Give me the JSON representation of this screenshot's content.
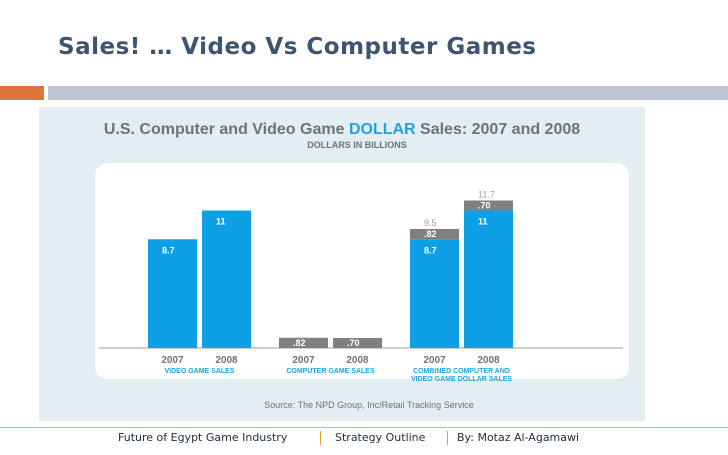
{
  "slide": {
    "title": "Sales! … Video Vs Computer Games",
    "footer": {
      "left": "Future of Egypt Game Industry",
      "middle": "Strategy Outline",
      "right": "By: Motaz Al-Agamawi"
    }
  },
  "colors": {
    "accent_orange": "#e0773a",
    "accent_gray": "#bcc6d1",
    "title_text": "#3b5573",
    "chart_title_gray": "#6d7378",
    "chart_title_blue": "#1fa3e0",
    "bar_blue": "#0ea0e6",
    "bar_gray": "#7f8082",
    "chart_bg": "#e3edf2"
  },
  "chart_data": {
    "type": "bar",
    "title_prefix": "U.S. Computer and Video Game ",
    "title_highlight": "DOLLAR",
    "title_suffix": " Sales: 2007 and 2008",
    "subtitle": "DOLLARS IN BILLIONS",
    "source": "Source: The NPD Group, Inc/Retail Tracking Service",
    "ylim": [
      0,
      12
    ],
    "grid": false,
    "legend": "none",
    "groups": [
      {
        "label_line1": "VIDEO GAME SALES",
        "label_line2": "",
        "bars": [
          {
            "category": "2007",
            "segments": [
              {
                "label": "8.7",
                "value": 8.7,
                "color": "blue"
              }
            ],
            "total_label": ""
          },
          {
            "category": "2008",
            "segments": [
              {
                "label": "11",
                "value": 11,
                "color": "blue"
              }
            ],
            "total_label": ""
          }
        ]
      },
      {
        "label_line1": "COMPUTER GAME SALES",
        "label_line2": "",
        "bars": [
          {
            "category": "2007",
            "segments": [
              {
                "label": ".82",
                "value": 0.82,
                "color": "gray"
              }
            ],
            "total_label": ""
          },
          {
            "category": "2008",
            "segments": [
              {
                "label": ".70",
                "value": 0.7,
                "color": "gray"
              }
            ],
            "total_label": ""
          }
        ]
      },
      {
        "label_line1": "COMBINED COMPUTER AND",
        "label_line2": "VIDEO GAME DOLLAR SALES",
        "bars": [
          {
            "category": "2007",
            "segments": [
              {
                "label": "8.7",
                "value": 8.7,
                "color": "blue"
              },
              {
                "label": ".82",
                "value": 0.82,
                "color": "gray"
              }
            ],
            "total_label": "9.5"
          },
          {
            "category": "2008",
            "segments": [
              {
                "label": "11",
                "value": 11,
                "color": "blue"
              },
              {
                "label": ".70",
                "value": 0.7,
                "color": "gray"
              }
            ],
            "total_label": "11.7"
          }
        ]
      }
    ]
  }
}
